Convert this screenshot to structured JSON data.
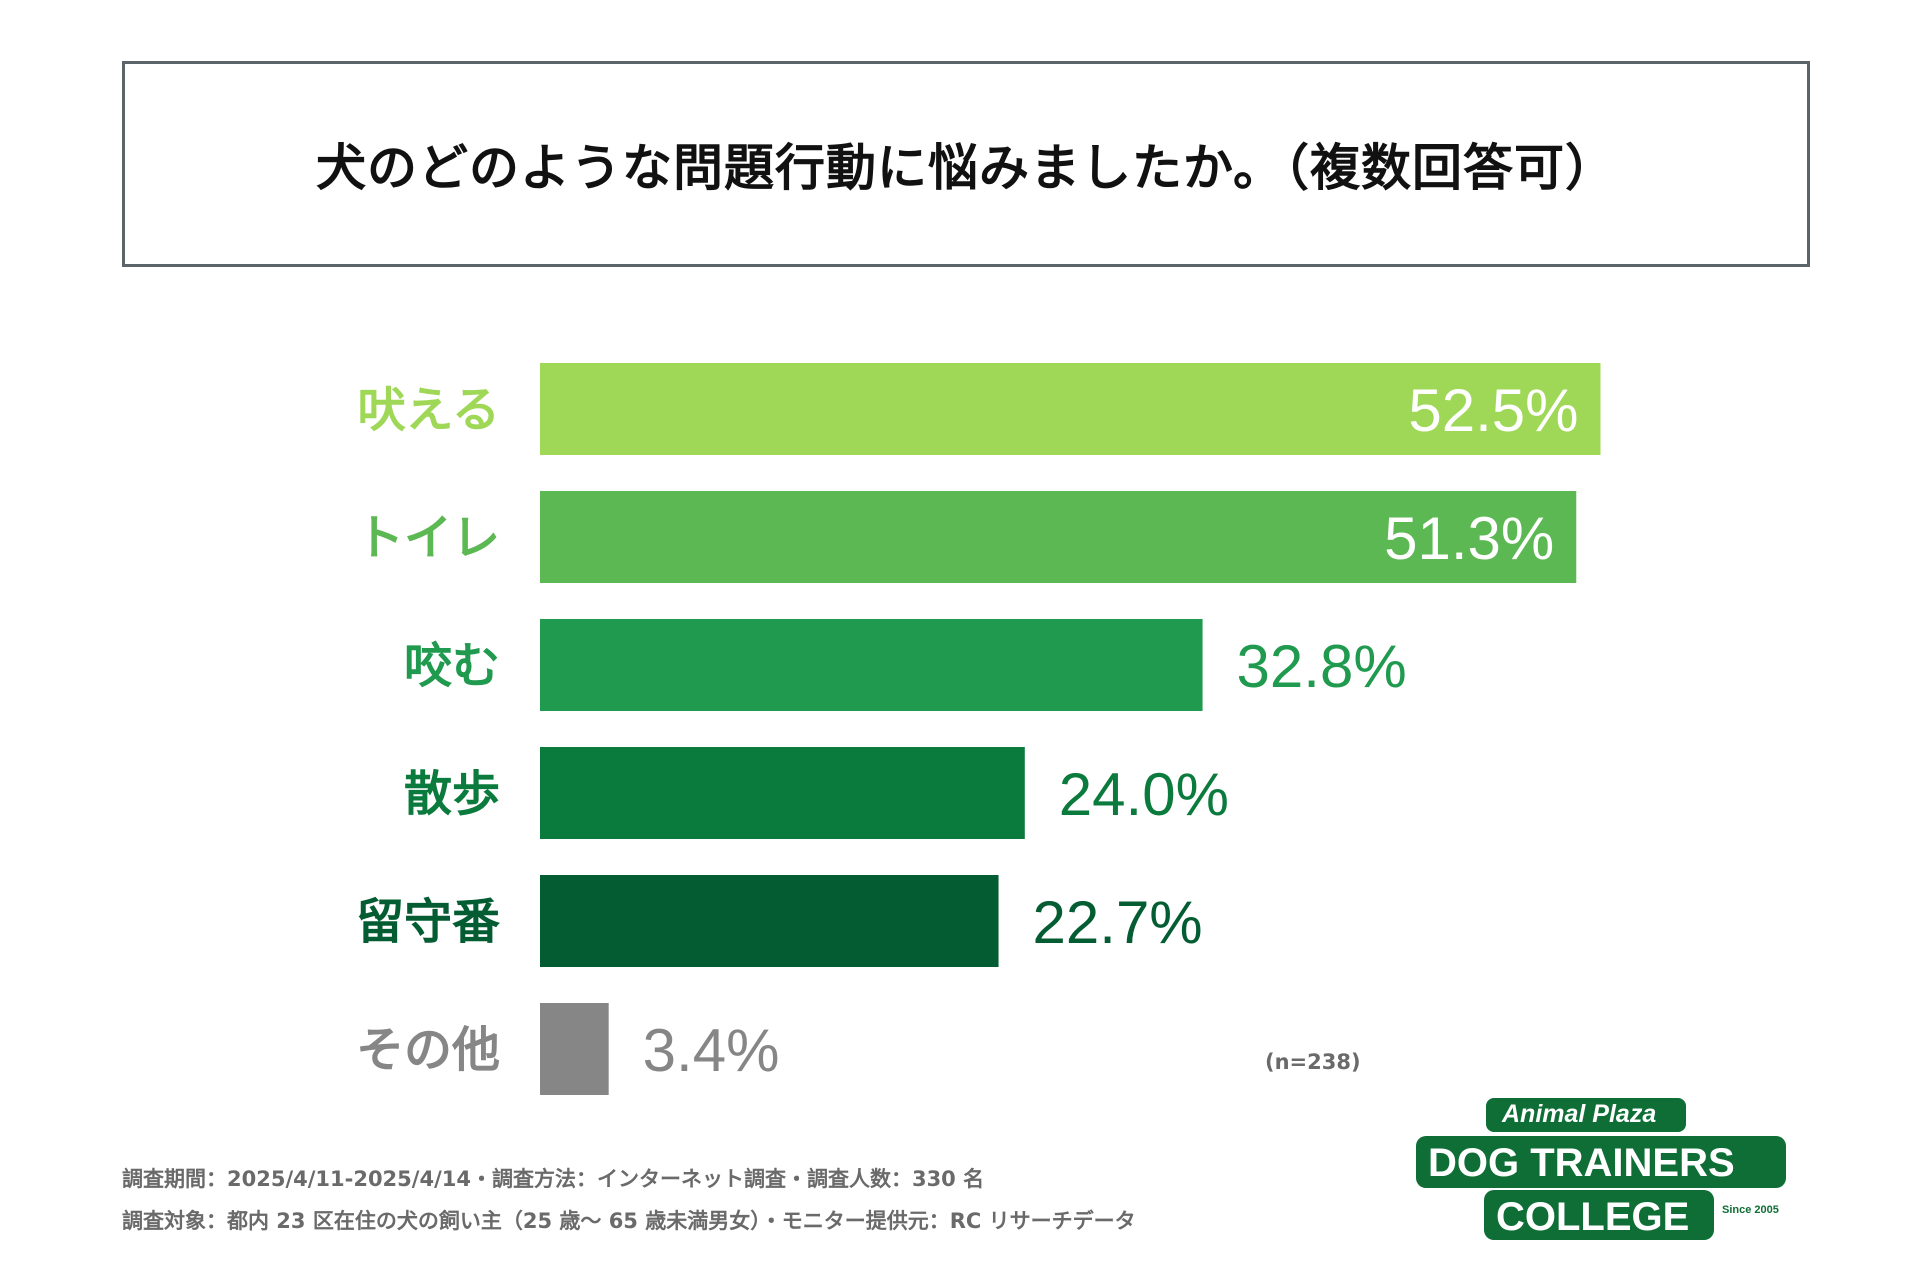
{
  "title": "犬のどのような問題行動に悩みましたか。（複数回答可）",
  "chart_data": {
    "type": "bar",
    "orientation": "horizontal",
    "title": "犬のどのような問題行動に悩みましたか。（複数回答可）",
    "categories": [
      "吠える",
      "トイレ",
      "咬む",
      "散歩",
      "留守番",
      "その他"
    ],
    "values": [
      52.5,
      51.3,
      32.8,
      24.0,
      22.7,
      3.4
    ],
    "value_labels": [
      "52.5%",
      "51.3%",
      "32.8%",
      "24.0%",
      "22.7%",
      "3.4%"
    ],
    "colors": [
      "#9fd857",
      "#5cb852",
      "#1f9a4f",
      "#0b7a3d",
      "#045c32",
      "#868686"
    ],
    "xlim": [
      0,
      60
    ],
    "unit": "%",
    "grid": false
  },
  "sample_size": "(n=238)",
  "footnotes": [
    "調査期間：2025/4/11-2025/4/14・調査方法：インターネット調査・調査人数：330 名",
    "調査対象：都内 23 区在住の犬の飼い主（25 歳〜 65 歳未満男女）・モニター提供元：RC リサーチデータ"
  ],
  "logo": {
    "line1": "Animal Plaza",
    "line2": "DOG TRAINERS",
    "line3": "COLLEGE",
    "since": "Since 2005",
    "color": "#0e6e35"
  }
}
